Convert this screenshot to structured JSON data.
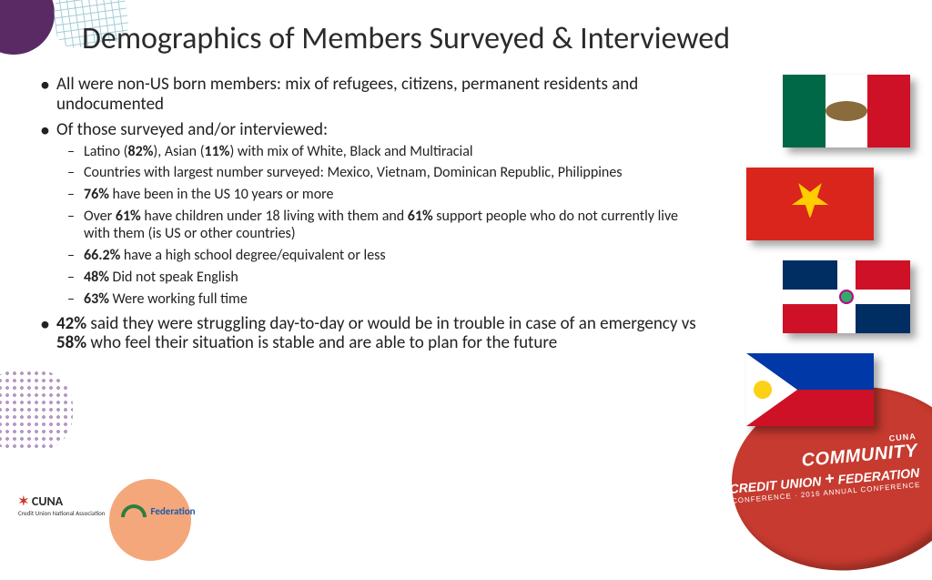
{
  "title": "Demographics of Members Surveyed & Interviewed",
  "bullets": {
    "b1": "All  were non-US born members: mix of refugees, citizens, permanent residents and undocumented",
    "b2": "Of those surveyed and/or interviewed:",
    "sub": {
      "s1a": "Latino (",
      "s1b": "82%",
      "s1c": "), Asian (",
      "s1d": "11%",
      "s1e": ") with mix of White, Black and Multiracial",
      "s2": "Countries with largest number surveyed: Mexico, Vietnam, Dominican Republic, Philippines",
      "s3a": "76%",
      "s3b": " have been in the US 10 years or more",
      "s4a": "Over ",
      "s4b": "61%",
      "s4c": " have children under 18 living with them and ",
      "s4d": "61%",
      "s4e": " support people who do not currently live with them (is US or other countries)",
      "s5a": "66.2%",
      "s5b": " have a high school degree/equivalent or less",
      "s6a": "48%",
      "s6b": " Did not speak English",
      "s7a": "63%",
      "s7b": " Were working full time"
    },
    "b3a": "42%",
    "b3b": " said they were struggling day-to-day or would be in trouble in case of an emergency vs ",
    "b3c": "58%",
    "b3d": " who feel their situation is stable and are able to plan for the future"
  },
  "flags": [
    "Mexico",
    "Vietnam",
    "Dominican Republic",
    "Philippines"
  ],
  "blob": {
    "l1": "CUNA",
    "l2": "COMMUNITY",
    "l3a": "CREDIT UNION",
    "plus": "+",
    "l3b": "FEDERATION",
    "l4": "CONFERENCE  ·  2016 ANNUAL CONFERENCE"
  },
  "logos": {
    "cuna_brand": "CUNA",
    "cuna_sub": "Credit Union National Association",
    "fed": "Federation"
  },
  "colors": {
    "title": "#2b2b2b",
    "accent_red": "#c63a2f",
    "mx_green": "#006847",
    "mx_red": "#ce1126",
    "vn_red": "#da251d",
    "vn_yellow": "#ffcd00",
    "dr_blue": "#002d62",
    "dr_red": "#ce1126",
    "ph_blue": "#0038a8",
    "ph_red": "#ce1126",
    "ph_yellow": "#fcd116"
  }
}
